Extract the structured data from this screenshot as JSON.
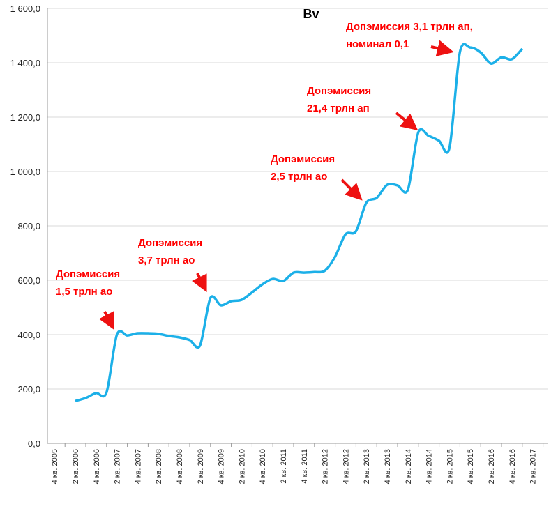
{
  "chart_data": {
    "type": "line",
    "title": "Bv",
    "categories": [
      "4 кв. 2005",
      null,
      "2 кв. 2006",
      null,
      "4 кв. 2006",
      null,
      "2 кв. 2007",
      null,
      "4 кв. 2007",
      null,
      "2 кв. 2008",
      null,
      "4 кв. 2008",
      null,
      "2 кв. 2009",
      null,
      "4 кв. 2009",
      null,
      "2 кв. 2010",
      null,
      "4 кв. 2010",
      null,
      "2 кв. 2011",
      null,
      "4 кв. 2011",
      null,
      "2 кв. 2012",
      null,
      "4 кв. 2012",
      null,
      "2 кв. 2013",
      null,
      "4 кв. 2013",
      null,
      "2 кв. 2014",
      null,
      "4 кв. 2014",
      null,
      "2 кв. 2015",
      null,
      "4 кв. 2015",
      null,
      "2 кв. 2016",
      null,
      "4 кв. 2016",
      null,
      "2 кв. 2017"
    ],
    "series": [
      {
        "name": "Bv",
        "color": "#1cb0e8",
        "values": [
          null,
          null,
          156,
          167,
          185,
          187,
          400,
          397,
          405,
          405,
          403,
          395,
          390,
          380,
          360,
          535,
          508,
          523,
          528,
          555,
          585,
          605,
          597,
          628,
          628,
          630,
          635,
          687,
          769,
          780,
          885,
          903,
          951,
          949,
          933,
          1144,
          1131,
          1113,
          1087,
          1438,
          1456,
          1438,
          1397,
          1420,
          1413,
          1451,
          null
        ]
      }
    ],
    "ylim": [
      0,
      1600
    ],
    "yticks": [
      {
        "value": 0,
        "label": "0,0"
      },
      {
        "value": 200,
        "label": "200,0"
      },
      {
        "value": 400,
        "label": "400,0"
      },
      {
        "value": 600,
        "label": "600,0"
      },
      {
        "value": 800,
        "label": "800,0"
      },
      {
        "value": 1000,
        "label": "1 000,0"
      },
      {
        "value": 1200,
        "label": "1 200,0"
      },
      {
        "value": 1400,
        "label": "1 400,0"
      },
      {
        "value": 1600,
        "label": "1 600,0"
      }
    ],
    "grid": true,
    "annotations": [
      {
        "lines": [
          "Допэмиссия",
          "1,5 трлн ао"
        ]
      },
      {
        "lines": [
          "Допэмиссия",
          "3,7 трлн ао"
        ]
      },
      {
        "lines": [
          "Допэмиссия",
          "2,5 трлн ао"
        ]
      },
      {
        "lines": [
          "Допэмиссия",
          "21,4 трлн ап"
        ]
      },
      {
        "lines": [
          "Допэмиссия  3,1 трлн ап,",
          "номинал 0,1"
        ]
      }
    ]
  }
}
